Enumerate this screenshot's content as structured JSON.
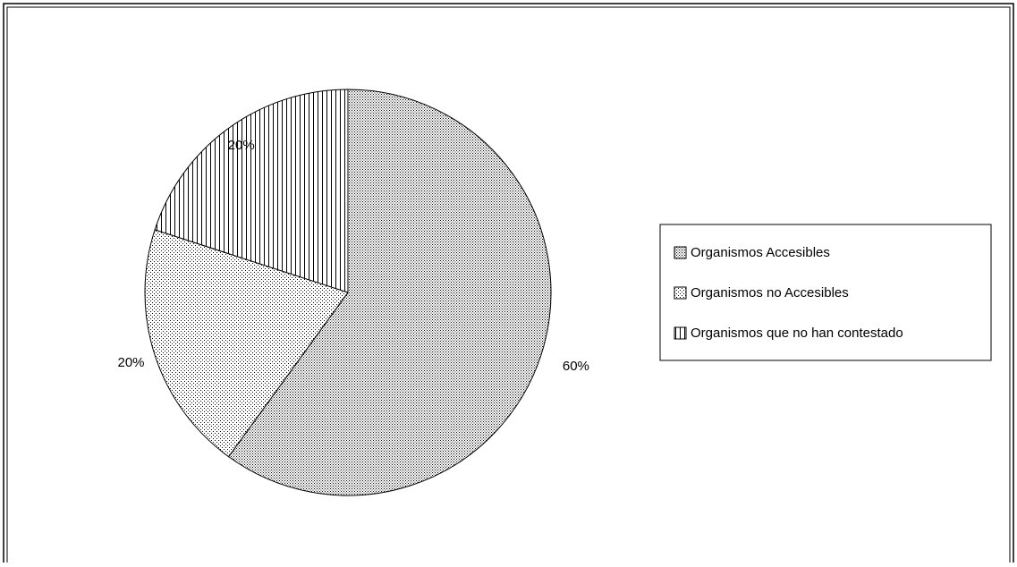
{
  "chart_data": {
    "type": "pie",
    "title": "",
    "categories": [
      "Organismos Accesibles",
      "Organismos no Accesibles",
      "Organismos que no han contestado"
    ],
    "values": [
      60,
      20,
      20
    ],
    "value_labels": [
      "60%",
      "20%",
      "20%"
    ],
    "start_angle_deg": 0,
    "direction": "clockwise",
    "fills": [
      "dense-dots",
      "sparse-dots",
      "vertical-stripes"
    ],
    "legend_position": "right"
  },
  "colors": {
    "ink": "#000000",
    "background": "#ffffff"
  }
}
